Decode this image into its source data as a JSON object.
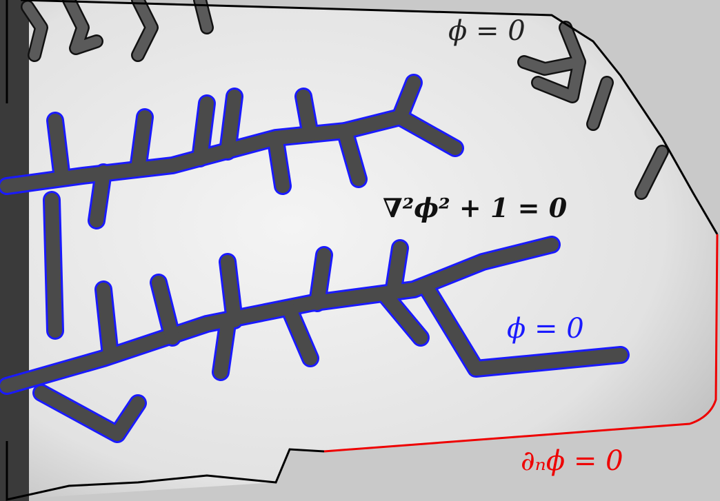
{
  "labels": {
    "top_boundary": "ϕ = 0",
    "equation": "∇²ϕ² + 1 = 0",
    "channel_boundary": "ϕ = 0",
    "neumann_boundary": "∂ₙϕ = 0"
  }
}
